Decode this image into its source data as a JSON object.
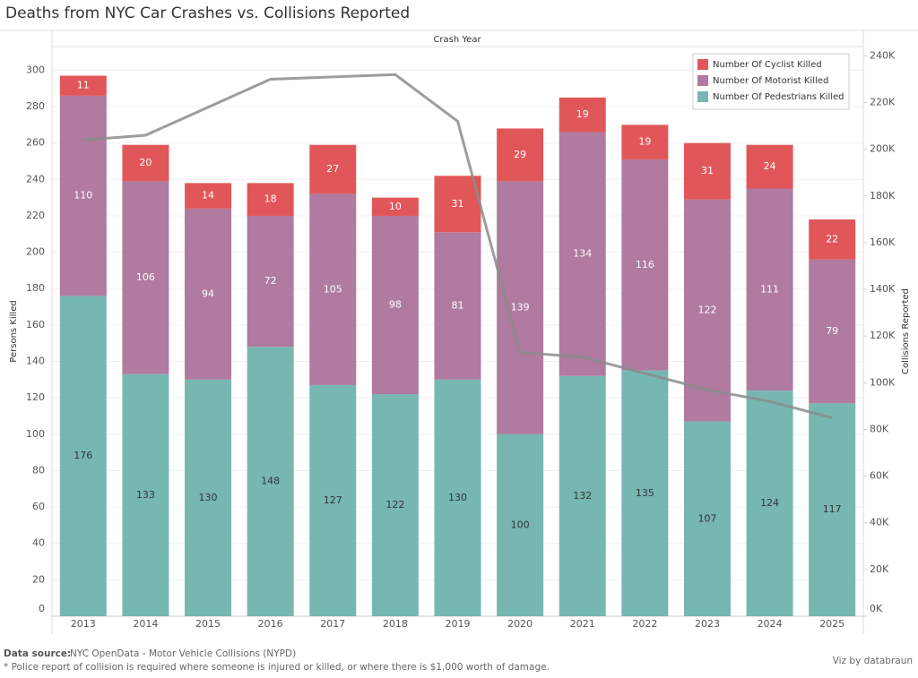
{
  "chart_data": {
    "type": "bar",
    "stacked": true,
    "title": "Deaths from NYC Car Crashes vs. Collisions Reported",
    "x_label": "Crash Year",
    "y_label": "Persons Killed",
    "categories": [
      "2013",
      "2014",
      "2015",
      "2016",
      "2017",
      "2018",
      "2019",
      "2020",
      "2021",
      "2022",
      "2023",
      "2024",
      "2025"
    ],
    "series": [
      {
        "name": "Number Of Pedestrians Killed",
        "color": "#76b7b2",
        "values": [
          176,
          133,
          130,
          148,
          127,
          122,
          130,
          100,
          132,
          135,
          107,
          124,
          117
        ]
      },
      {
        "name": "Number Of Motorist Killed",
        "color": "#b07aa1",
        "values": [
          110,
          106,
          94,
          72,
          105,
          98,
          81,
          139,
          134,
          116,
          122,
          111,
          79
        ]
      },
      {
        "name": "Number Of Cyclist Killed",
        "color": "#e15759",
        "values": [
          11,
          20,
          14,
          18,
          27,
          10,
          31,
          29,
          19,
          19,
          31,
          24,
          22
        ]
      },
      {
        "name": "Collisions Reported",
        "type": "line",
        "axis": "y2",
        "color": "#8c8c8c",
        "values": [
          204000,
          206000,
          218000,
          230000,
          231000,
          232000,
          212000,
          113000,
          111000,
          104000,
          97000,
          92000,
          85000
        ]
      }
    ],
    "ylim": [
      0,
      313
    ],
    "yticks": [
      0,
      20,
      40,
      60,
      80,
      100,
      120,
      140,
      160,
      180,
      200,
      220,
      240,
      260,
      280,
      300
    ],
    "y2lim": [
      0,
      244000
    ],
    "y2ticks": [
      {
        "value": 0,
        "label": "0K"
      },
      {
        "value": 20000,
        "label": "20K"
      },
      {
        "value": 40000,
        "label": "40K"
      },
      {
        "value": 60000,
        "label": "60K"
      },
      {
        "value": 80000,
        "label": "80K"
      },
      {
        "value": 100000,
        "label": "100K"
      },
      {
        "value": 120000,
        "label": "120K"
      },
      {
        "value": 140000,
        "label": "140K"
      },
      {
        "value": 160000,
        "label": "160K"
      },
      {
        "value": 180000,
        "label": "180K"
      },
      {
        "value": 200000,
        "label": "200K"
      },
      {
        "value": 220000,
        "label": "220K"
      },
      {
        "value": 240000,
        "label": "240K"
      }
    ],
    "grid": true,
    "legend": "top-right"
  },
  "footer": {
    "source_label": "Data source:",
    "source": "NYC OpenData - Motor Vehicle Collisions (NYPD)",
    "note": "* Police report of collision is required where someone is injured or killed, or where there is $1,000 worth of damage.",
    "credit": "Viz by databraun"
  }
}
